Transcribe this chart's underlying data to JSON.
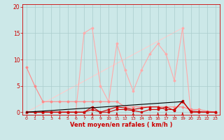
{
  "xlabel": "Vent moyen/en rafales ( km/h )",
  "xlim": [
    -0.5,
    23.5
  ],
  "ylim": [
    -0.5,
    20.5
  ],
  "yticks": [
    0,
    5,
    10,
    15,
    20
  ],
  "xticks": [
    0,
    1,
    2,
    3,
    4,
    5,
    6,
    7,
    8,
    9,
    10,
    11,
    12,
    13,
    14,
    15,
    16,
    17,
    18,
    19,
    20,
    21,
    22,
    23
  ],
  "bg_color": "#cce8e8",
  "grid_color": "#aacccc",
  "arrow_color": "#cc0000",
  "series_pink_decay": {
    "x": [
      0,
      1,
      2,
      3,
      4,
      5,
      6,
      7,
      8,
      9,
      10,
      11,
      12,
      13,
      14,
      15,
      16,
      17,
      18,
      19,
      20,
      21,
      22,
      23
    ],
    "y": [
      8.5,
      5,
      2,
      2,
      2,
      2,
      2,
      2,
      2,
      2,
      2,
      2,
      1,
      1,
      1,
      1,
      1,
      1,
      1,
      1,
      0.5,
      0.5,
      0.2,
      0
    ],
    "color": "#ff8888",
    "lw": 0.8,
    "marker": "D",
    "ms": 1.5
  },
  "series_spiky_light": {
    "x": [
      0,
      1,
      2,
      3,
      4,
      5,
      6,
      7,
      8,
      9,
      10,
      11,
      12,
      13,
      14,
      15,
      16,
      17,
      18,
      19,
      20,
      21,
      22,
      23
    ],
    "y": [
      0,
      0,
      0,
      0,
      0,
      0,
      0,
      15,
      16,
      5,
      2,
      13,
      8,
      4,
      8,
      11,
      13,
      11,
      6,
      16,
      0,
      0,
      0,
      0
    ],
    "color": "#ffaaaa",
    "lw": 0.8,
    "marker": "D",
    "ms": 1.5
  },
  "series_diagonal": {
    "x": [
      0,
      19
    ],
    "y": [
      0,
      16
    ],
    "color": "#ffcccc",
    "lw": 0.8
  },
  "series_dark_bumpy1": {
    "x": [
      0,
      1,
      2,
      3,
      4,
      5,
      6,
      7,
      8,
      9,
      10,
      11,
      12,
      13,
      14,
      15,
      16,
      17,
      18,
      19,
      20,
      21,
      22,
      23
    ],
    "y": [
      0,
      0,
      0,
      0,
      0,
      0,
      0,
      0,
      0.5,
      0,
      0.5,
      1,
      0.8,
      0.5,
      0.8,
      1,
      1,
      0.5,
      0.5,
      2,
      0.2,
      0.1,
      0,
      0
    ],
    "color": "#cc0000",
    "lw": 0.8,
    "marker": "^",
    "ms": 2.0
  },
  "series_dark_bumpy2": {
    "x": [
      0,
      1,
      2,
      3,
      4,
      5,
      6,
      7,
      8,
      9,
      10,
      11,
      12,
      13,
      14,
      15,
      16,
      17,
      18,
      19,
      20,
      21,
      22,
      23
    ],
    "y": [
      0,
      0,
      0,
      0,
      0,
      0,
      0,
      0,
      1,
      0,
      0,
      0.5,
      0.5,
      0.3,
      0,
      0.5,
      0.5,
      1,
      0.3,
      2.2,
      0,
      0,
      0,
      0
    ],
    "color": "#cc0000",
    "lw": 0.8,
    "marker": "s",
    "ms": 1.5
  },
  "series_black_line": {
    "x": [
      0,
      19
    ],
    "y": [
      0,
      2
    ],
    "color": "#000000",
    "lw": 0.8
  },
  "arrows_x": [
    8,
    11,
    13,
    16,
    17,
    19
  ]
}
